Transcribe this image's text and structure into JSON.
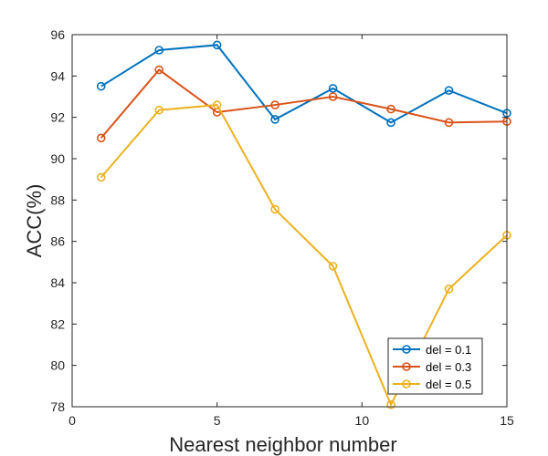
{
  "chart_data": {
    "type": "line",
    "title": "",
    "xlabel": "Nearest neighbor number",
    "ylabel": "ACC(%)",
    "xlim": [
      0,
      15
    ],
    "ylim": [
      78,
      96
    ],
    "xticks": [
      0,
      5,
      10,
      15
    ],
    "yticks": [
      78,
      80,
      82,
      84,
      86,
      88,
      90,
      92,
      94,
      96
    ],
    "grid": false,
    "legend_position": "bottom-right",
    "x": [
      1,
      3,
      5,
      7,
      9,
      11,
      13,
      15
    ],
    "series": [
      {
        "name": "del = 0.1",
        "color": "#0072BD",
        "values": [
          93.5,
          95.25,
          95.5,
          91.9,
          93.4,
          91.75,
          93.3,
          92.2
        ]
      },
      {
        "name": "del = 0.3",
        "color": "#D95319",
        "values": [
          91.0,
          94.3,
          92.25,
          92.6,
          93.0,
          92.4,
          91.75,
          91.8
        ]
      },
      {
        "name": "del = 0.5",
        "color": "#EDB120",
        "values": [
          89.1,
          92.35,
          92.6,
          87.55,
          84.8,
          78.1,
          83.7,
          86.3
        ]
      }
    ]
  }
}
